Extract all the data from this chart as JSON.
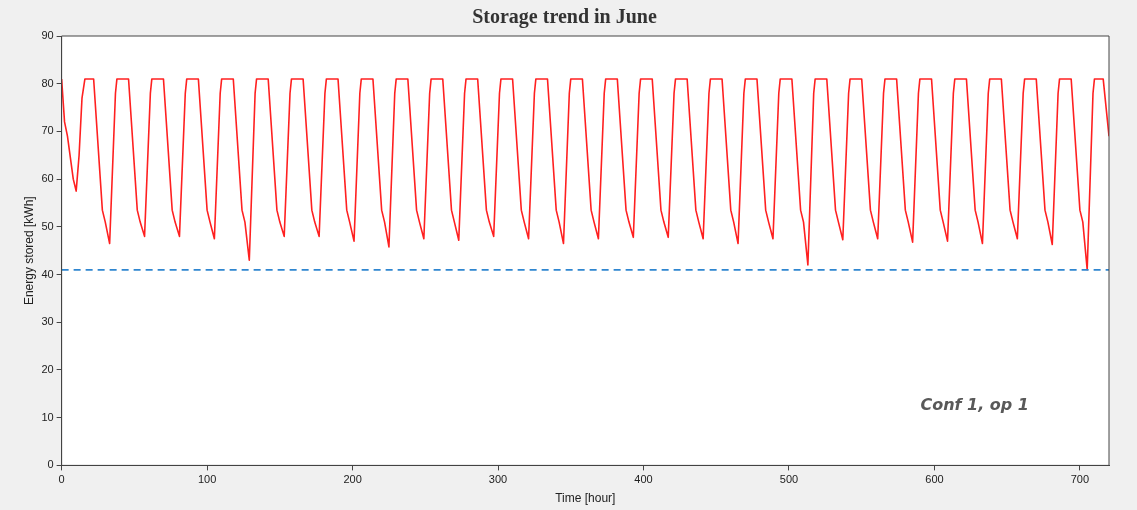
{
  "chart_data": {
    "type": "line",
    "title": "Storage trend in June",
    "xlabel": "Time [hour]",
    "ylabel": "Energy stored [kWh]",
    "x": [
      0,
      2,
      4,
      8,
      10,
      12,
      14,
      16,
      22,
      28,
      30,
      33,
      37,
      38,
      46,
      52,
      54,
      57,
      61,
      62,
      70,
      76,
      78,
      81,
      85,
      86,
      94,
      100,
      102,
      105,
      109,
      110,
      118,
      124,
      126,
      129,
      133,
      134,
      142,
      148,
      150,
      153,
      157,
      158,
      166,
      172,
      174,
      177,
      181,
      182,
      190,
      196,
      198,
      201,
      205,
      206,
      214,
      220,
      222,
      225,
      229,
      230,
      238,
      244,
      246,
      249,
      253,
      254,
      262,
      268,
      270,
      273,
      277,
      278,
      286,
      292,
      294,
      297,
      301,
      302,
      310,
      316,
      318,
      321,
      325,
      326,
      334,
      340,
      342,
      345,
      349,
      350,
      358,
      364,
      366,
      369,
      373,
      374,
      382,
      388,
      390,
      393,
      397,
      398,
      406,
      412,
      414,
      417,
      421,
      422,
      430,
      436,
      438,
      441,
      445,
      446,
      454,
      460,
      462,
      465,
      469,
      470,
      478,
      484,
      486,
      489,
      493,
      494,
      502,
      508,
      510,
      513,
      517,
      518,
      526,
      532,
      534,
      537,
      541,
      542,
      550,
      556,
      558,
      561,
      565,
      566,
      574,
      580,
      582,
      585,
      589,
      590,
      598,
      604,
      606,
      609,
      613,
      614,
      622,
      628,
      630,
      633,
      637,
      638,
      646,
      652,
      654,
      657,
      661,
      662,
      670,
      676,
      678,
      681,
      685,
      686,
      694,
      700,
      702,
      705,
      709,
      710,
      716,
      720
    ],
    "series": [
      {
        "color": "#ff2020",
        "values": [
          81,
          72,
          69,
          60,
          57.5,
          65,
          77,
          81,
          81,
          53.5,
          51,
          46.5,
          78,
          81,
          81,
          53.5,
          51,
          48,
          78,
          81,
          81,
          53.5,
          51,
          48,
          78,
          81,
          81,
          53.5,
          51,
          47.5,
          78,
          81,
          81,
          53.5,
          51,
          43,
          78,
          81,
          81,
          53.5,
          51,
          48,
          78,
          81,
          81,
          53.5,
          51,
          48,
          78,
          81,
          81,
          53.5,
          51,
          47,
          78,
          81,
          81,
          53.5,
          51,
          45.8,
          78,
          81,
          81,
          53.5,
          51,
          47.5,
          78,
          81,
          81,
          53.5,
          51,
          47.2,
          78,
          81,
          81,
          53.5,
          51,
          48,
          78,
          81,
          81,
          53.5,
          51,
          47.5,
          78,
          81,
          81,
          53.5,
          51,
          46.5,
          78,
          81,
          81,
          53.5,
          51,
          47.5,
          78,
          81,
          81,
          53.5,
          51,
          47.8,
          78,
          81,
          81,
          53.5,
          51,
          47.8,
          78,
          81,
          81,
          53.5,
          51,
          47.5,
          78,
          81,
          81,
          53.5,
          51,
          46.5,
          78,
          81,
          81,
          53.5,
          51,
          47.5,
          78,
          81,
          81,
          53.5,
          51,
          42,
          78,
          81,
          81,
          53.5,
          51,
          47.3,
          78,
          81,
          81,
          53.5,
          51,
          47.5,
          78,
          81,
          81,
          53.5,
          51,
          46.8,
          78,
          81,
          81,
          53.5,
          51,
          47,
          78,
          81,
          81,
          53.5,
          51,
          46.5,
          78,
          81,
          81,
          53.5,
          51,
          47.5,
          78,
          81,
          81,
          53.5,
          51,
          46.3,
          78,
          81,
          81,
          53.5,
          51,
          41,
          78,
          81,
          81,
          69
        ]
      }
    ],
    "xlim": [
      0,
      720
    ],
    "xticks": [
      0,
      100,
      200,
      300,
      400,
      500,
      600,
      700
    ],
    "ylim": [
      0,
      90
    ],
    "yticks": [
      0,
      10,
      20,
      30,
      40,
      50,
      60,
      70,
      80,
      90
    ],
    "ref_lines": [
      {
        "axis": "y",
        "value": 41,
        "color": "#2f86d0",
        "line_style": "dashed"
      }
    ],
    "annotations": [
      "Conf 1, op 1"
    ],
    "grid": false,
    "legend": false,
    "marker": "none",
    "line_style": "solid"
  }
}
